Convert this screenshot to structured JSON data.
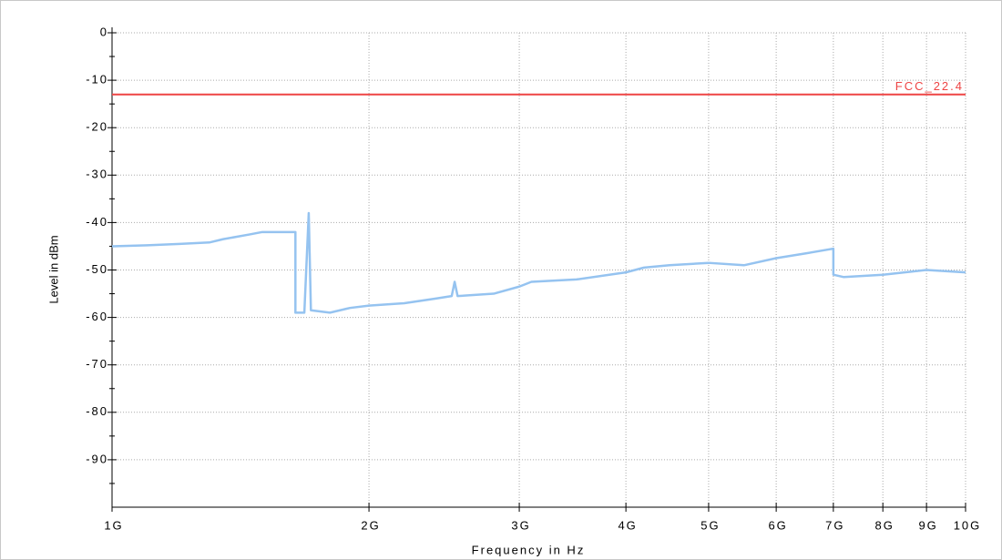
{
  "chart_data": {
    "type": "line",
    "x_label": "Frequency in Hz",
    "y_label": "Level in dBm",
    "x_scale": "log",
    "xlim": [
      1000000000,
      10000000000
    ],
    "xticks": [
      {
        "value": 1000000000,
        "label": "1G"
      },
      {
        "value": 2000000000,
        "label": "2G"
      },
      {
        "value": 3000000000,
        "label": "3G"
      },
      {
        "value": 4000000000,
        "label": "4G"
      },
      {
        "value": 5000000000,
        "label": "5G"
      },
      {
        "value": 6000000000,
        "label": "6G"
      },
      {
        "value": 7000000000,
        "label": "7G"
      },
      {
        "value": 8000000000,
        "label": "8G"
      },
      {
        "value": 9000000000,
        "label": "9G"
      },
      {
        "value": 10000000000,
        "label": "10G"
      }
    ],
    "ylim": [
      -100,
      0
    ],
    "yticks": [
      0,
      -10,
      -20,
      -30,
      -40,
      -50,
      -60,
      -70,
      -80,
      -90
    ],
    "grid": true,
    "series": [
      {
        "color": "#95c3f0",
        "x": [
          1000000000,
          1100000000,
          1200000000,
          1300000000,
          1350000000,
          1450000000,
          1500000000,
          1600000000,
          1640000000,
          1640000000,
          1680000000,
          1700000000,
          1710000000,
          1800000000,
          1900000000,
          2000000000,
          2200000000,
          2400000000,
          2500000000,
          2520000000,
          2540000000,
          2800000000,
          3000000000,
          3100000000,
          3500000000,
          4000000000,
          4200000000,
          4500000000,
          5000000000,
          5500000000,
          6000000000,
          6500000000,
          7000000000,
          7000000000,
          7200000000,
          8000000000,
          9000000000,
          10000000000
        ],
        "values": [
          -45,
          -44.8,
          -44.5,
          -44.2,
          -43.5,
          -42.5,
          -42,
          -42,
          -42,
          -59,
          -59,
          -38,
          -58.5,
          -59,
          -58,
          -57.5,
          -57,
          -56,
          -55.5,
          -52.5,
          -55.5,
          -55,
          -53.5,
          -52.5,
          -52,
          -50.5,
          -49.5,
          -49,
          -48.5,
          -49,
          -47.5,
          -46.5,
          -45.5,
          -51,
          -51.5,
          -51,
          -50,
          -50.5
        ]
      }
    ],
    "limit_lines": [
      {
        "name": "FCC_22.4",
        "value": -13,
        "color": "#ee4444"
      }
    ]
  }
}
